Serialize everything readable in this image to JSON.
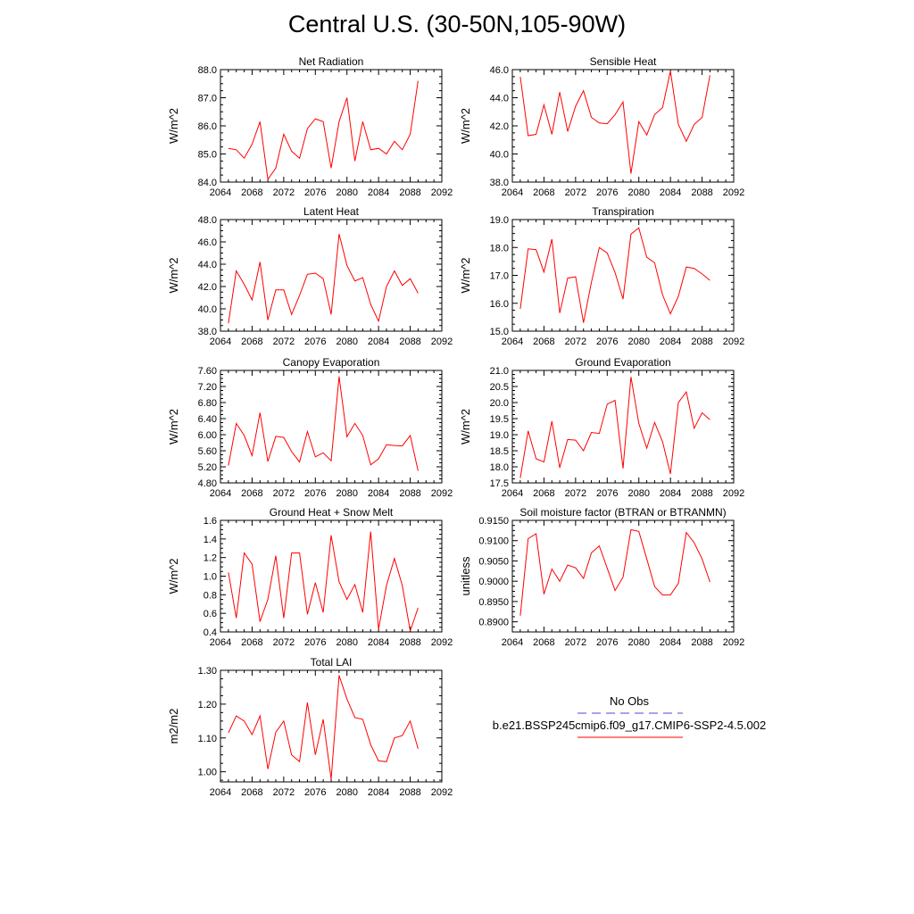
{
  "figure": {
    "title": "Central U.S. (30-50N,105-90W)"
  },
  "colors": {
    "series": "#ff0000",
    "obs": "#4b4bd6",
    "axis": "#000000"
  },
  "legend": {
    "entries": [
      {
        "label": "No Obs",
        "style": "dashed",
        "color": "#4b4bd6"
      },
      {
        "label": "b.e21.BSSP245cmip6.f09_g17.CMIP6-SSP2-4.5.002",
        "style": "solid",
        "color": "#ff0000"
      }
    ]
  },
  "chart_data": [
    {
      "type": "line",
      "title": "Net Radiation",
      "xlabel": "",
      "ylabel": "W/m^2",
      "xlim": [
        2064,
        2092
      ],
      "ylim": [
        84.0,
        88.0
      ],
      "xticks": [
        2064,
        2068,
        2072,
        2076,
        2080,
        2084,
        2088,
        2092
      ],
      "yticks": [
        84.0,
        85.0,
        86.0,
        87.0,
        88.0
      ],
      "ytick_labels": [
        "84.0",
        "85.0",
        "86.0",
        "87.0",
        "88.0"
      ],
      "x": [
        2065,
        2066,
        2067,
        2068,
        2069,
        2070,
        2071,
        2072,
        2073,
        2074,
        2075,
        2076,
        2077,
        2078,
        2079,
        2080,
        2081,
        2082,
        2083,
        2084,
        2085,
        2086,
        2087,
        2088,
        2089
      ],
      "series": [
        {
          "values": [
            85.2,
            85.15,
            84.85,
            85.35,
            86.15,
            84.1,
            84.5,
            85.7,
            85.1,
            84.85,
            85.9,
            86.25,
            86.15,
            84.5,
            86.15,
            87.0,
            84.75,
            86.15,
            85.15,
            85.2,
            85.0,
            85.45,
            85.15,
            85.7,
            87.6
          ]
        }
      ]
    },
    {
      "type": "line",
      "title": "Sensible Heat",
      "xlabel": "",
      "ylabel": "W/m^2",
      "xlim": [
        2064,
        2092
      ],
      "ylim": [
        38.0,
        46.0
      ],
      "xticks": [
        2064,
        2068,
        2072,
        2076,
        2080,
        2084,
        2088,
        2092
      ],
      "yticks": [
        38.0,
        40.0,
        42.0,
        44.0,
        46.0
      ],
      "ytick_labels": [
        "38.0",
        "40.0",
        "42.0",
        "44.0",
        "46.0"
      ],
      "x": [
        2065,
        2066,
        2067,
        2068,
        2069,
        2070,
        2071,
        2072,
        2073,
        2074,
        2075,
        2076,
        2077,
        2078,
        2079,
        2080,
        2081,
        2082,
        2083,
        2084,
        2085,
        2086,
        2087,
        2088,
        2089
      ],
      "series": [
        {
          "values": [
            45.5,
            41.3,
            41.4,
            43.5,
            41.4,
            44.4,
            41.6,
            43.4,
            44.5,
            42.6,
            42.2,
            42.15,
            42.8,
            43.7,
            38.6,
            42.3,
            41.35,
            42.8,
            43.3,
            45.9,
            42.1,
            40.9,
            42.1,
            42.6,
            45.6
          ]
        }
      ]
    },
    {
      "type": "line",
      "title": "Latent Heat",
      "xlabel": "",
      "ylabel": "W/m^2",
      "xlim": [
        2064,
        2092
      ],
      "ylim": [
        38.0,
        48.0
      ],
      "xticks": [
        2064,
        2068,
        2072,
        2076,
        2080,
        2084,
        2088,
        2092
      ],
      "yticks": [
        38.0,
        40.0,
        42.0,
        44.0,
        46.0,
        48.0
      ],
      "ytick_labels": [
        "38.0",
        "40.0",
        "42.0",
        "44.0",
        "46.0",
        "48.0"
      ],
      "x": [
        2065,
        2066,
        2067,
        2068,
        2069,
        2070,
        2071,
        2072,
        2073,
        2074,
        2075,
        2076,
        2077,
        2078,
        2079,
        2080,
        2081,
        2082,
        2083,
        2084,
        2085,
        2086,
        2087,
        2088,
        2089
      ],
      "series": [
        {
          "values": [
            38.7,
            43.4,
            42.2,
            40.8,
            44.2,
            39.0,
            41.7,
            41.7,
            39.5,
            41.2,
            43.1,
            43.2,
            42.7,
            39.5,
            46.7,
            43.9,
            42.5,
            42.8,
            40.4,
            38.9,
            42.0,
            43.4,
            42.1,
            42.7,
            41.4
          ]
        }
      ]
    },
    {
      "type": "line",
      "title": "Transpiration",
      "xlabel": "",
      "ylabel": "W/m^2",
      "xlim": [
        2064,
        2092
      ],
      "ylim": [
        15.0,
        19.0
      ],
      "xticks": [
        2064,
        2068,
        2072,
        2076,
        2080,
        2084,
        2088,
        2092
      ],
      "yticks": [
        15.0,
        16.0,
        17.0,
        18.0,
        19.0
      ],
      "ytick_labels": [
        "15.0",
        "16.0",
        "17.0",
        "18.0",
        "19.0"
      ],
      "x": [
        2065,
        2066,
        2067,
        2068,
        2069,
        2070,
        2071,
        2072,
        2073,
        2074,
        2075,
        2076,
        2077,
        2078,
        2079,
        2080,
        2081,
        2082,
        2083,
        2084,
        2085,
        2086,
        2087,
        2088,
        2089
      ],
      "series": [
        {
          "values": [
            15.8,
            17.95,
            17.92,
            17.12,
            18.3,
            15.65,
            16.9,
            16.95,
            15.3,
            16.75,
            18.0,
            17.8,
            17.1,
            16.15,
            18.48,
            18.7,
            17.65,
            17.45,
            16.3,
            15.62,
            16.25,
            17.3,
            17.25,
            17.05,
            16.82
          ]
        }
      ]
    },
    {
      "type": "line",
      "title": "Canopy Evaporation",
      "xlabel": "",
      "ylabel": "W/m^2",
      "xlim": [
        2064,
        2092
      ],
      "ylim": [
        4.8,
        7.6
      ],
      "xticks": [
        2064,
        2068,
        2072,
        2076,
        2080,
        2084,
        2088,
        2092
      ],
      "yticks": [
        4.8,
        5.2,
        5.6,
        6.0,
        6.4,
        6.8,
        7.2,
        7.6
      ],
      "ytick_labels": [
        "4.80",
        "5.20",
        "5.60",
        "6.00",
        "6.40",
        "6.80",
        "7.20",
        "7.60"
      ],
      "x": [
        2065,
        2066,
        2067,
        2068,
        2069,
        2070,
        2071,
        2072,
        2073,
        2074,
        2075,
        2076,
        2077,
        2078,
        2079,
        2080,
        2081,
        2082,
        2083,
        2084,
        2085,
        2086,
        2087,
        2088,
        2089
      ],
      "series": [
        {
          "values": [
            5.23,
            6.28,
            5.98,
            5.48,
            6.55,
            5.33,
            5.96,
            5.93,
            5.58,
            5.32,
            6.08,
            5.45,
            5.55,
            5.35,
            7.45,
            5.95,
            6.28,
            5.98,
            5.25,
            5.4,
            5.75,
            5.73,
            5.72,
            5.98,
            5.1
          ]
        }
      ]
    },
    {
      "type": "line",
      "title": "Ground Evaporation",
      "xlabel": "",
      "ylabel": "W/m^2",
      "xlim": [
        2064,
        2092
      ],
      "ylim": [
        17.5,
        21.0
      ],
      "xticks": [
        2064,
        2068,
        2072,
        2076,
        2080,
        2084,
        2088,
        2092
      ],
      "yticks": [
        17.5,
        18.0,
        18.5,
        19.0,
        19.5,
        20.0,
        20.5,
        21.0
      ],
      "ytick_labels": [
        "17.5",
        "18.0",
        "18.5",
        "19.0",
        "19.5",
        "20.0",
        "20.5",
        "21.0"
      ],
      "x": [
        2065,
        2066,
        2067,
        2068,
        2069,
        2070,
        2071,
        2072,
        2073,
        2074,
        2075,
        2076,
        2077,
        2078,
        2079,
        2080,
        2081,
        2082,
        2083,
        2084,
        2085,
        2086,
        2087,
        2088,
        2089
      ],
      "series": [
        {
          "values": [
            17.65,
            19.12,
            18.25,
            18.15,
            19.42,
            17.97,
            18.85,
            18.83,
            18.5,
            19.07,
            19.04,
            19.95,
            20.07,
            17.95,
            20.8,
            19.35,
            18.58,
            19.38,
            18.78,
            17.78,
            20.0,
            20.33,
            19.2,
            19.68,
            19.47
          ]
        }
      ]
    },
    {
      "type": "line",
      "title": "Ground Heat + Snow Melt",
      "xlabel": "",
      "ylabel": "W/m^2",
      "xlim": [
        2064,
        2092
      ],
      "ylim": [
        0.4,
        1.6
      ],
      "xticks": [
        2064,
        2068,
        2072,
        2076,
        2080,
        2084,
        2088,
        2092
      ],
      "yticks": [
        0.4,
        0.6,
        0.8,
        1.0,
        1.2,
        1.4,
        1.6
      ],
      "ytick_labels": [
        "0.4",
        "0.6",
        "0.8",
        "1.0",
        "1.2",
        "1.4",
        "1.6"
      ],
      "x": [
        2065,
        2066,
        2067,
        2068,
        2069,
        2070,
        2071,
        2072,
        2073,
        2074,
        2075,
        2076,
        2077,
        2078,
        2079,
        2080,
        2081,
        2082,
        2083,
        2084,
        2085,
        2086,
        2087,
        2088,
        2089
      ],
      "series": [
        {
          "values": [
            1.04,
            0.55,
            1.25,
            1.13,
            0.51,
            0.75,
            1.22,
            0.55,
            1.25,
            1.25,
            0.59,
            0.93,
            0.61,
            1.44,
            0.94,
            0.75,
            0.91,
            0.61,
            1.48,
            0.43,
            0.9,
            1.19,
            0.9,
            0.41,
            0.66
          ]
        }
      ]
    },
    {
      "type": "line",
      "title": "Soil moisture factor (BTRAN or BTRANMN)",
      "xlabel": "",
      "ylabel": "unitless",
      "xlim": [
        2064,
        2092
      ],
      "ylim": [
        0.8875,
        0.915
      ],
      "xticks": [
        2064,
        2068,
        2072,
        2076,
        2080,
        2084,
        2088,
        2092
      ],
      "yticks": [
        0.89,
        0.895,
        0.9,
        0.905,
        0.91,
        0.915
      ],
      "ytick_labels": [
        "0.8900",
        "0.8950",
        "0.9000",
        "0.9050",
        "0.9100",
        "0.9150"
      ],
      "x": [
        2065,
        2066,
        2067,
        2068,
        2069,
        2070,
        2071,
        2072,
        2073,
        2074,
        2075,
        2076,
        2077,
        2078,
        2079,
        2080,
        2081,
        2082,
        2083,
        2084,
        2085,
        2086,
        2087,
        2088,
        2089
      ],
      "series": [
        {
          "values": [
            0.8915,
            0.9105,
            0.9117,
            0.8968,
            0.903,
            0.9,
            0.904,
            0.9033,
            0.9007,
            0.907,
            0.9087,
            0.9032,
            0.8977,
            0.901,
            0.9127,
            0.9123,
            0.9055,
            0.8987,
            0.8966,
            0.8966,
            0.8995,
            0.912,
            0.9095,
            0.9055,
            0.8998
          ]
        }
      ]
    },
    {
      "type": "line",
      "title": "Total LAI",
      "xlabel": "",
      "ylabel": "m2/m2",
      "xlim": [
        2064,
        2092
      ],
      "ylim": [
        0.97,
        1.3
      ],
      "xticks": [
        2064,
        2068,
        2072,
        2076,
        2080,
        2084,
        2088,
        2092
      ],
      "yticks": [
        1.0,
        1.1,
        1.2,
        1.3
      ],
      "ytick_labels": [
        "1.00",
        "1.10",
        "1.20",
        "1.30"
      ],
      "x": [
        2065,
        2066,
        2067,
        2068,
        2069,
        2070,
        2071,
        2072,
        2073,
        2074,
        2075,
        2076,
        2077,
        2078,
        2079,
        2080,
        2081,
        2082,
        2083,
        2084,
        2085,
        2086,
        2087,
        2088,
        2089
      ],
      "series": [
        {
          "values": [
            1.115,
            1.165,
            1.15,
            1.11,
            1.165,
            1.008,
            1.117,
            1.15,
            1.05,
            1.03,
            1.205,
            1.05,
            1.155,
            0.978,
            1.285,
            1.215,
            1.16,
            1.155,
            1.08,
            1.032,
            1.03,
            1.1,
            1.107,
            1.15,
            1.068
          ]
        }
      ]
    }
  ]
}
